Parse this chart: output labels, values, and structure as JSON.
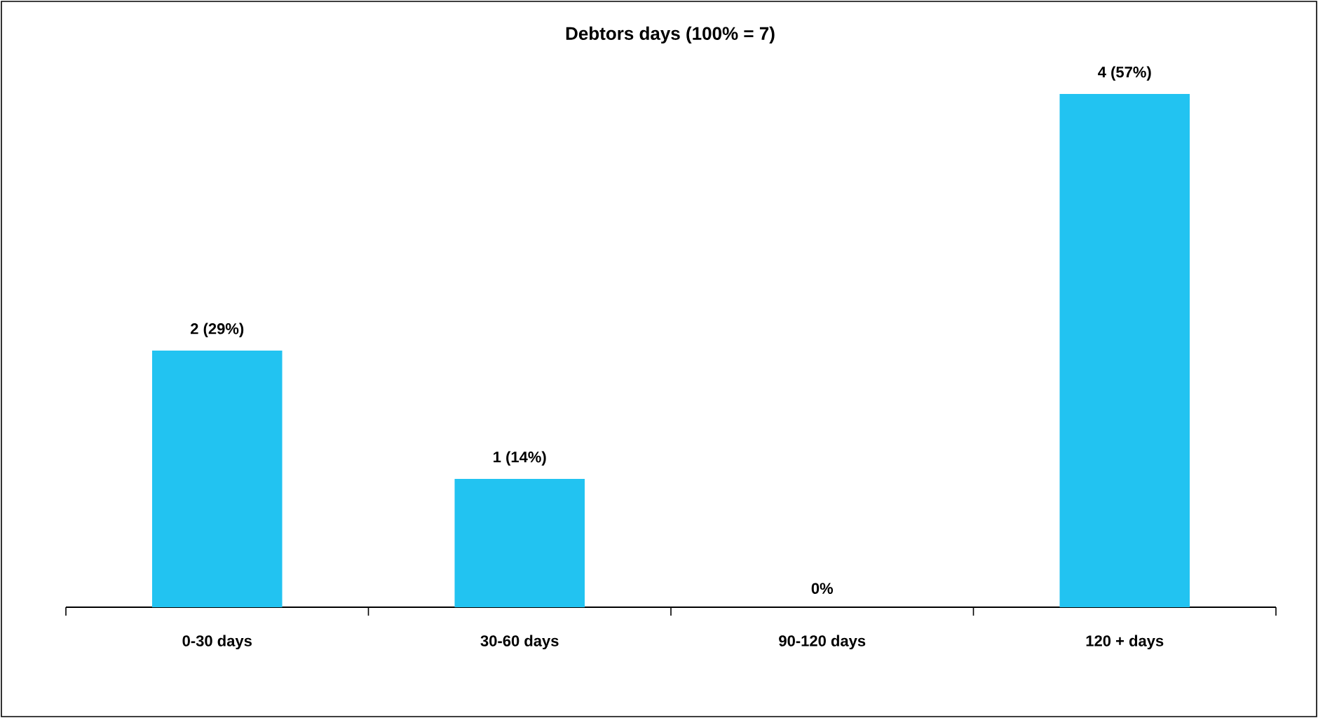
{
  "chart_data": {
    "type": "bar",
    "title": "Debtors days (100% = 7)",
    "categories": [
      "0-30 days",
      "30-60 days",
      "90-120 days",
      "120 + days"
    ],
    "values": [
      2,
      1,
      0,
      4
    ],
    "value_labels": [
      "2 (29%)",
      "1 (14%)",
      "0%",
      "4 (57%)"
    ],
    "color": "#22c3f1",
    "tick_labels": "x"
  }
}
